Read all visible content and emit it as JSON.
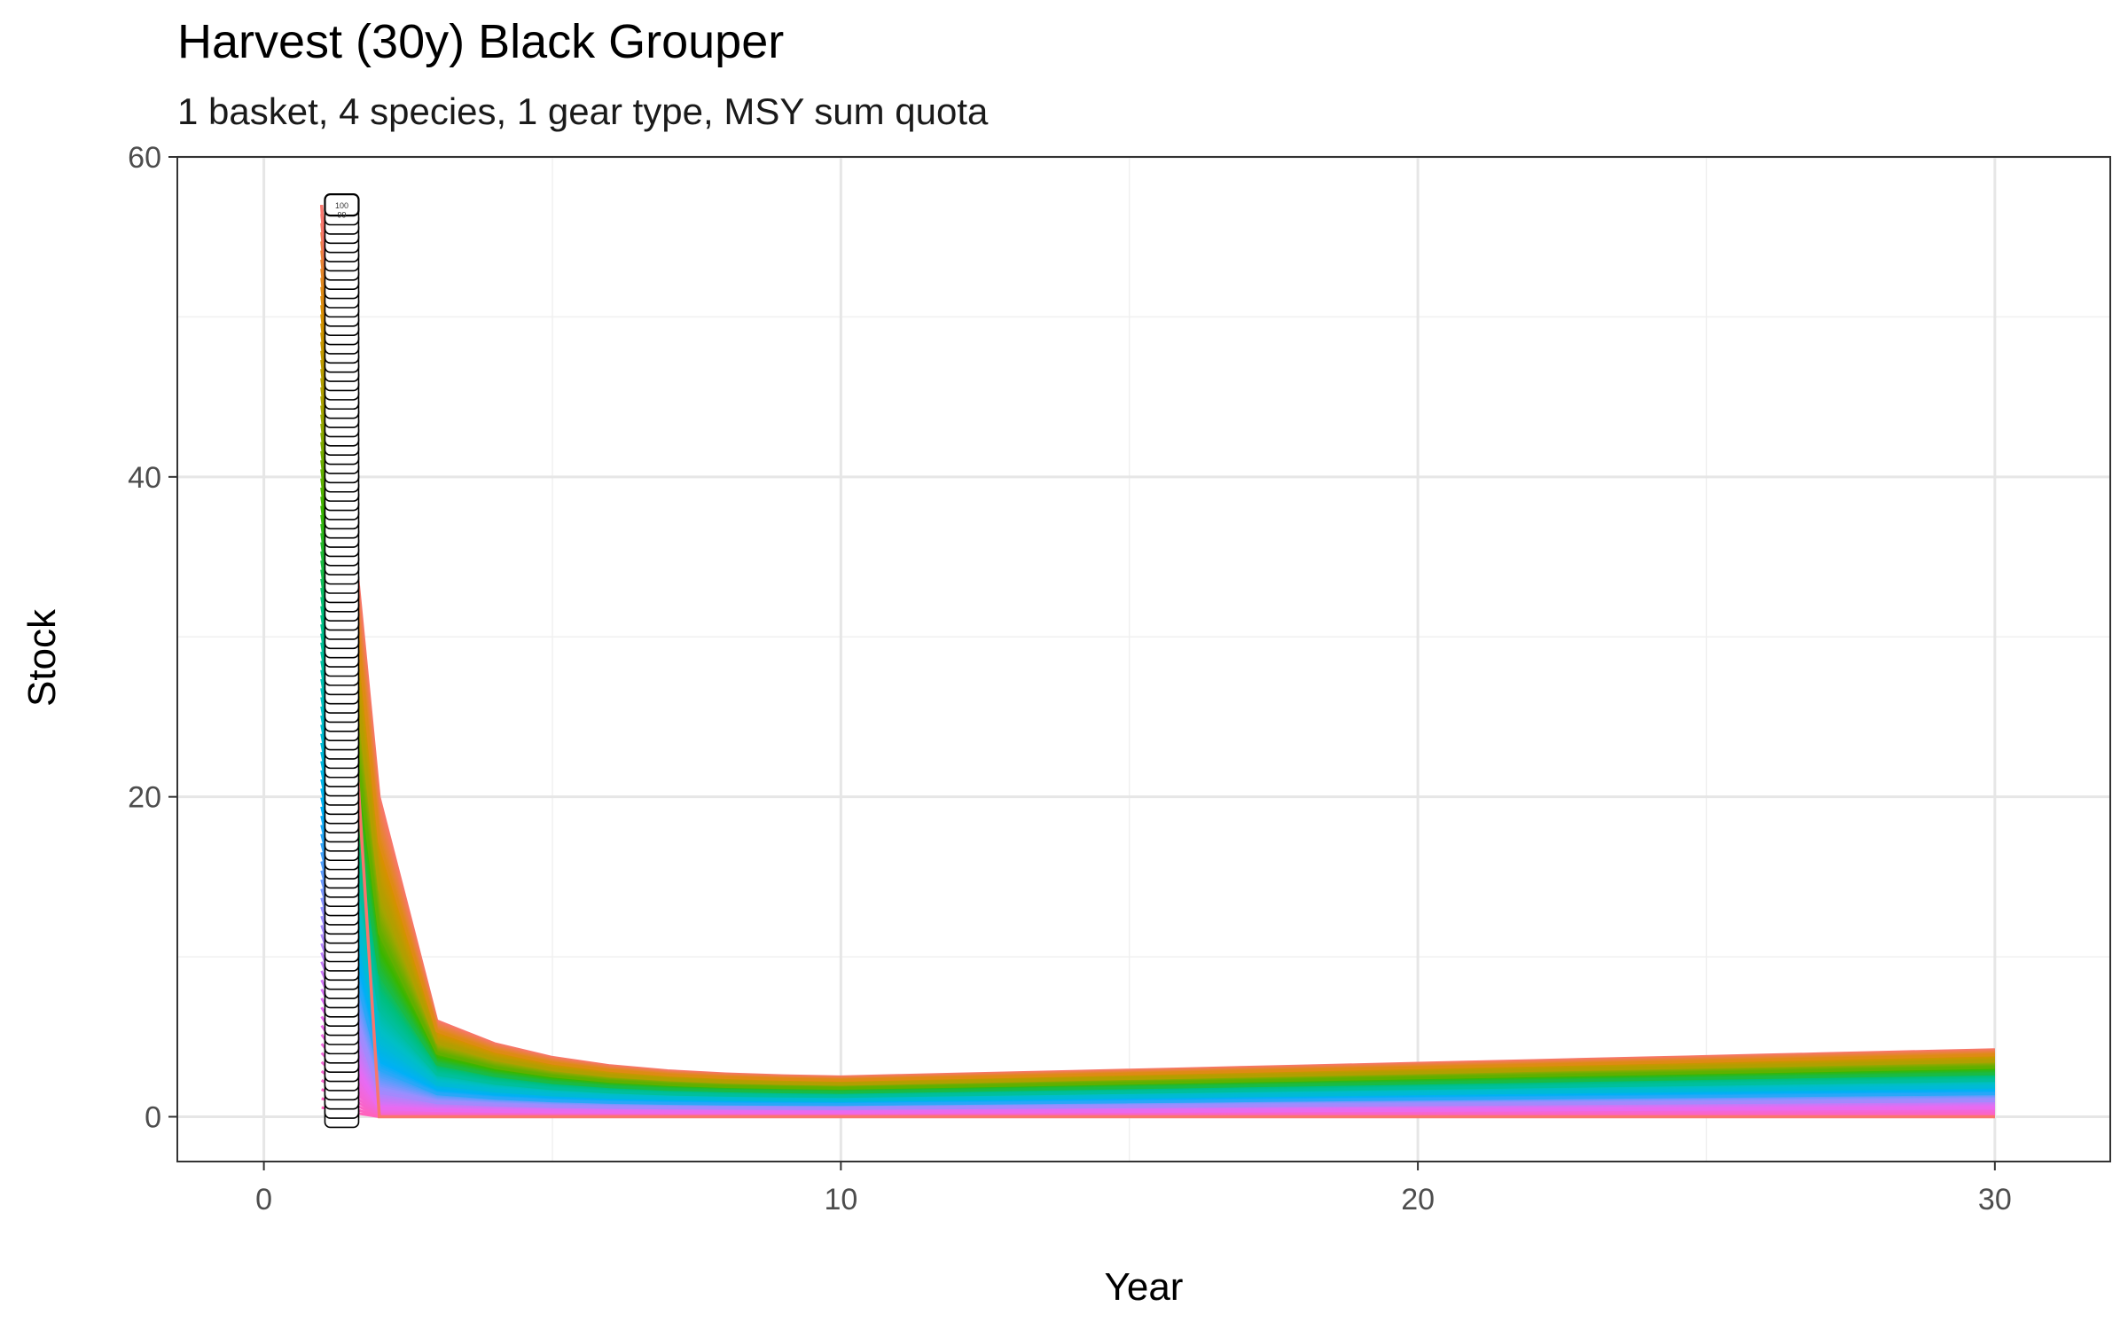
{
  "chart_data": {
    "type": "line",
    "title": "Harvest (30y) Black Grouper",
    "subtitle": "1 basket, 4 species, 1 gear type, MSY sum quota",
    "xlabel": "Year",
    "ylabel": "Stock",
    "xlim": [
      -1.5,
      32
    ],
    "ylim": [
      -2.8,
      60
    ],
    "x_ticks": [
      0,
      10,
      20,
      30
    ],
    "y_ticks": [
      0,
      20,
      40,
      60
    ],
    "grid": true,
    "legend": "none",
    "label_x": 1.35,
    "label_count": 100,
    "label_first": "100",
    "label_second": "99",
    "series_count": 100,
    "series_start_x": 1,
    "series_end_x": 30,
    "series_start_y_max": 57,
    "year2_range": [
      0,
      20
    ],
    "year3_range": [
      0,
      6
    ],
    "year10_range": [
      0,
      2.5
    ],
    "year30_range": [
      0,
      4.2
    ],
    "colors": [
      "#F8766D",
      "#D89000",
      "#A3A500",
      "#39B600",
      "#00BF7D",
      "#00BFC4",
      "#00B0F6",
      "#9590FF",
      "#E76BF3",
      "#FF62BC"
    ]
  }
}
